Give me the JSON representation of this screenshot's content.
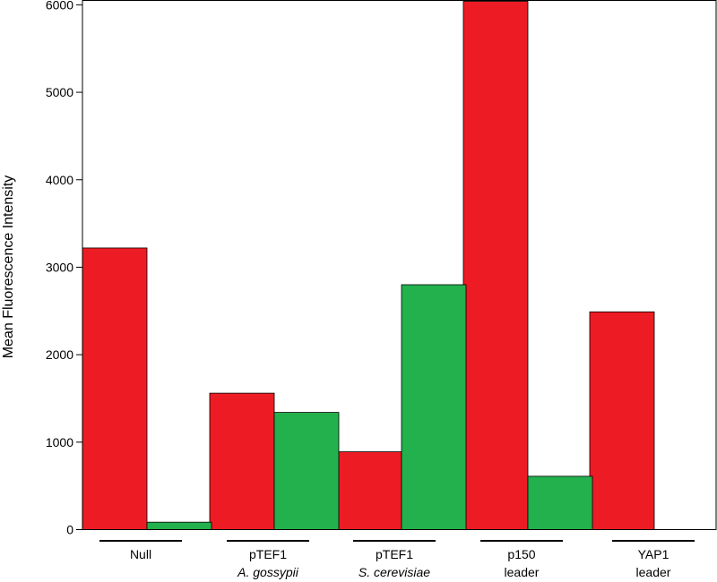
{
  "chart_data": {
    "type": "bar",
    "title": "",
    "xlabel": "",
    "ylabel": "Mean Fluorescence Intensity",
    "ylim": [
      0,
      6050
    ],
    "yticks": [
      0,
      1000,
      2000,
      3000,
      4000,
      5000,
      6000
    ],
    "grid": false,
    "legend": "none",
    "categories": [
      {
        "line1": "Null",
        "line2": "",
        "line2_italic": false
      },
      {
        "line1": "pTEF1",
        "line2": "A. gossypii",
        "line2_italic": true
      },
      {
        "line1": "pTEF1",
        "line2": "S. cerevisiae",
        "line2_italic": true
      },
      {
        "line1": "p150",
        "line2": "leader",
        "line2_italic": false
      },
      {
        "line1": "YAP1",
        "line2": "leader",
        "line2_italic": false
      }
    ],
    "series": [
      {
        "color": "#ed1c24",
        "values": [
          3220,
          1560,
          890,
          6040,
          2490
        ]
      },
      {
        "color": "#22b14c",
        "values": [
          85,
          1340,
          2800,
          610,
          0
        ]
      }
    ]
  }
}
